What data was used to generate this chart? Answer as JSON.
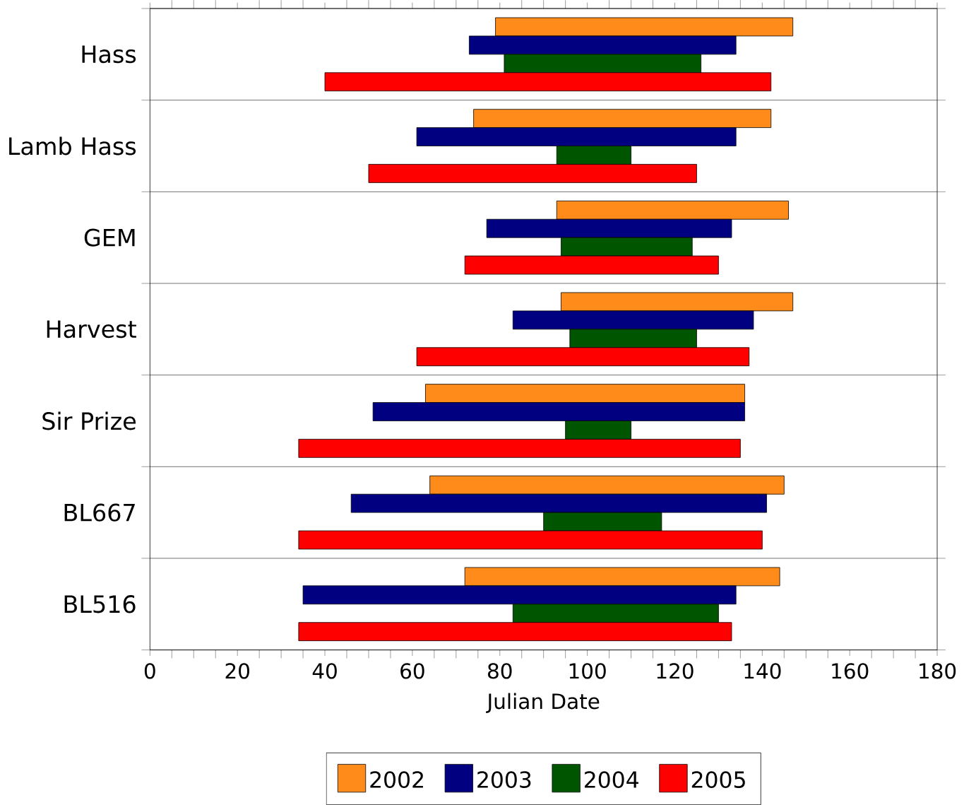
{
  "chart_data": {
    "type": "bar",
    "orientation": "horizontal",
    "xlabel": "Julian Date",
    "categories": [
      "Hass",
      "Lamb Hass",
      "GEM",
      "Harvest",
      "Sir Prize",
      "BL667",
      "BL516"
    ],
    "series": [
      {
        "name": "2002",
        "color": "#ff8c1a",
        "base": [
          79,
          74,
          93,
          94,
          63,
          64,
          72
        ],
        "values": [
          68,
          68,
          53,
          53,
          73,
          81,
          72
        ]
      },
      {
        "name": "2003",
        "color": "#000080",
        "base": [
          73,
          61,
          77,
          83,
          51,
          46,
          35
        ],
        "values": [
          61,
          73,
          56,
          55,
          85,
          95,
          99
        ]
      },
      {
        "name": "2004",
        "color": "#005500",
        "base": [
          81,
          93,
          94,
          96,
          95,
          90,
          83
        ],
        "values": [
          45,
          17,
          30,
          29,
          15,
          27,
          47
        ]
      },
      {
        "name": "2005",
        "color": "#ff0000",
        "base": [
          40,
          50,
          72,
          61,
          34,
          34,
          34
        ],
        "values": [
          102,
          75,
          58,
          76,
          101,
          106,
          99
        ]
      }
    ],
    "xlim": [
      0,
      180
    ],
    "xticks": [
      0,
      20,
      40,
      60,
      80,
      100,
      120,
      140,
      160,
      180
    ],
    "grid": "y",
    "legend": "bottom"
  }
}
